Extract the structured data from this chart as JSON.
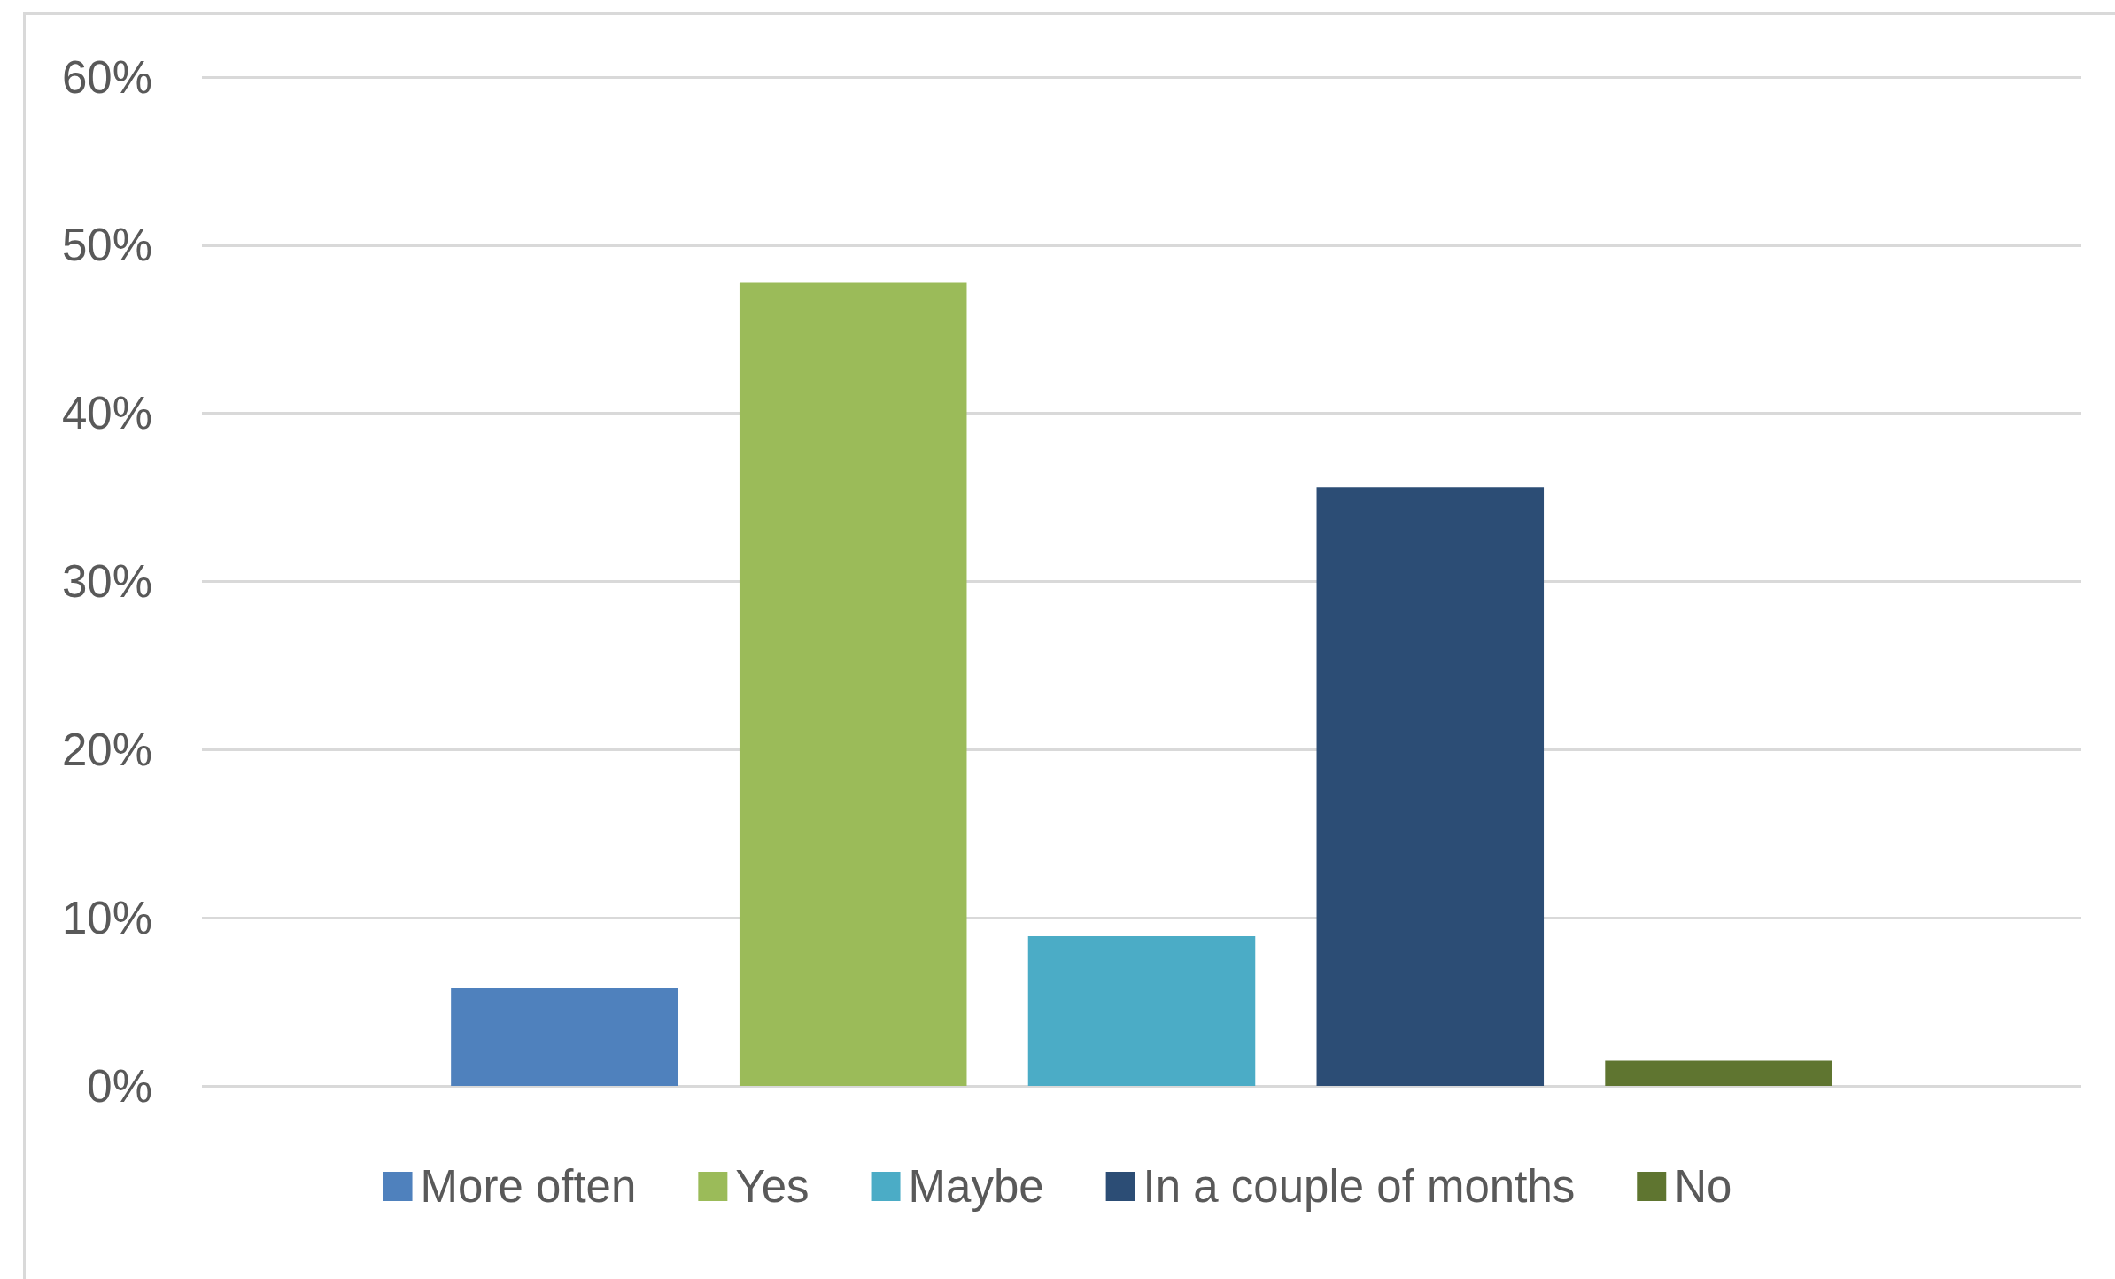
{
  "chart_data": {
    "type": "bar",
    "categories": [
      null
    ],
    "series": [
      {
        "name": "More often",
        "color": "#4f81bd",
        "values": [
          5.8
        ]
      },
      {
        "name": "Yes",
        "color": "#9bbb59",
        "values": [
          47.8
        ]
      },
      {
        "name": "Maybe",
        "color": "#4bacc6",
        "values": [
          8.9
        ]
      },
      {
        "name": "In a couple of months",
        "color": "#2c4d75",
        "values": [
          35.6
        ]
      },
      {
        "name": "No",
        "color": "#5f7530",
        "values": [
          1.5
        ]
      }
    ],
    "ylim": [
      0,
      60
    ],
    "yticks": [
      {
        "value": 0,
        "label": "0%"
      },
      {
        "value": 10,
        "label": "10%"
      },
      {
        "value": 20,
        "label": "20%"
      },
      {
        "value": 30,
        "label": "30%"
      },
      {
        "value": 40,
        "label": "40%"
      },
      {
        "value": 50,
        "label": "50%"
      },
      {
        "value": 60,
        "label": "60%"
      }
    ],
    "grid": "y",
    "legend": "bottom",
    "tick_labels": "y"
  }
}
